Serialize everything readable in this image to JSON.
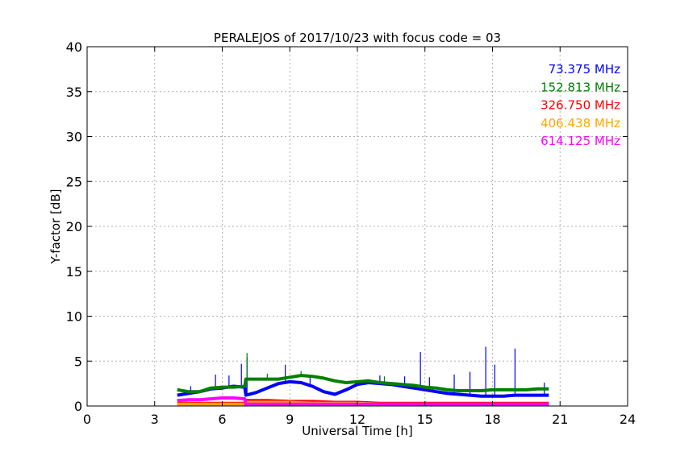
{
  "chart_data": {
    "type": "line",
    "title": "PERALEJOS of 2017/10/23 with focus code = 03",
    "xlabel": "Universal Time [h]",
    "ylabel": "Y-factor [dB]",
    "xlim": [
      0,
      24
    ],
    "ylim": [
      0,
      40
    ],
    "xticks": [
      0,
      3,
      6,
      9,
      12,
      15,
      18,
      21,
      24
    ],
    "yticks": [
      0,
      5,
      10,
      15,
      20,
      25,
      30,
      35,
      40
    ],
    "grid": true,
    "legend_position": "top-right",
    "series": [
      {
        "name": "73.375 MHz",
        "color": "#0000ff",
        "x": [
          4.0,
          4.5,
          5.0,
          5.5,
          6.0,
          6.5,
          7.0,
          7.05,
          7.5,
          8.0,
          8.5,
          9.0,
          9.5,
          10.0,
          10.5,
          11.0,
          11.5,
          12.0,
          12.5,
          13.0,
          13.5,
          14.0,
          14.5,
          15.0,
          15.5,
          16.0,
          16.5,
          17.0,
          17.5,
          18.0,
          18.5,
          19.0,
          19.5,
          20.0,
          20.5
        ],
        "y": [
          1.2,
          1.4,
          1.6,
          1.9,
          2.0,
          2.2,
          2.1,
          1.2,
          1.5,
          2.0,
          2.5,
          2.7,
          2.6,
          2.2,
          1.6,
          1.3,
          1.8,
          2.4,
          2.6,
          2.5,
          2.4,
          2.2,
          2.0,
          1.8,
          1.6,
          1.4,
          1.3,
          1.2,
          1.1,
          1.1,
          1.1,
          1.2,
          1.2,
          1.2,
          1.2
        ],
        "spikes": [
          [
            4.6,
            2.2
          ],
          [
            5.7,
            3.5
          ],
          [
            6.3,
            3.4
          ],
          [
            6.85,
            4.7
          ],
          [
            7.1,
            5.4
          ],
          [
            8.8,
            4.6
          ],
          [
            9.9,
            3.4
          ],
          [
            13.0,
            3.4
          ],
          [
            14.1,
            3.3
          ],
          [
            14.8,
            6.0
          ],
          [
            15.2,
            3.2
          ],
          [
            16.3,
            3.5
          ],
          [
            17.0,
            3.8
          ],
          [
            17.7,
            6.6
          ],
          [
            18.1,
            4.6
          ],
          [
            19.0,
            6.4
          ],
          [
            20.3,
            2.6
          ]
        ]
      },
      {
        "name": "152.813 MHz",
        "color": "#008000",
        "x": [
          4.0,
          4.5,
          5.0,
          5.5,
          6.0,
          6.5,
          7.0,
          7.05,
          7.5,
          8.0,
          8.5,
          9.0,
          9.5,
          10.0,
          10.5,
          11.0,
          11.5,
          12.0,
          12.5,
          13.0,
          13.5,
          14.0,
          14.5,
          15.0,
          15.5,
          16.0,
          16.5,
          17.0,
          17.5,
          18.0,
          18.5,
          19.0,
          19.5,
          20.0,
          20.5
        ],
        "y": [
          1.8,
          1.6,
          1.6,
          2.0,
          2.1,
          2.1,
          2.2,
          3.0,
          3.0,
          3.0,
          3.0,
          3.2,
          3.4,
          3.3,
          3.1,
          2.8,
          2.6,
          2.7,
          2.8,
          2.6,
          2.5,
          2.4,
          2.3,
          2.1,
          2.0,
          1.8,
          1.7,
          1.7,
          1.7,
          1.8,
          1.8,
          1.8,
          1.8,
          1.9,
          1.9
        ],
        "spikes": [
          [
            7.1,
            5.9
          ],
          [
            8.0,
            3.6
          ],
          [
            9.5,
            3.9
          ],
          [
            13.2,
            3.3
          ]
        ]
      },
      {
        "name": "326.750 MHz",
        "color": "#ff0000",
        "x": [
          4.0,
          5.0,
          6.0,
          7.0,
          7.05,
          8.0,
          9.0,
          10.0,
          11.0,
          12.0,
          13.0,
          14.0,
          15.0,
          16.0,
          17.0,
          18.0,
          19.0,
          20.0,
          20.5
        ],
        "y": [
          0.3,
          0.3,
          0.3,
          0.3,
          0.6,
          0.6,
          0.5,
          0.5,
          0.4,
          0.4,
          0.3,
          0.3,
          0.3,
          0.3,
          0.3,
          0.3,
          0.3,
          0.3,
          0.3
        ],
        "spikes": []
      },
      {
        "name": "406.438 MHz",
        "color": "#ffa500",
        "x": [
          4.0,
          5.0,
          6.0,
          7.0,
          7.05,
          8.0,
          9.0,
          10.0,
          11.0,
          12.0,
          13.0,
          14.0,
          15.0,
          16.0,
          17.0,
          18.0,
          19.0,
          20.0,
          20.5
        ],
        "y": [
          0.2,
          0.2,
          0.2,
          0.2,
          0.4,
          0.4,
          0.4,
          0.3,
          0.3,
          0.3,
          0.2,
          0.2,
          0.2,
          0.2,
          0.2,
          0.2,
          0.2,
          0.2,
          0.2
        ],
        "spikes": []
      },
      {
        "name": "614.125 MHz",
        "color": "#ff00ff",
        "x": [
          4.0,
          4.5,
          5.0,
          5.5,
          6.0,
          6.5,
          7.0,
          7.05,
          8.0,
          9.0,
          10.0,
          11.0,
          12.0,
          13.0,
          14.0,
          15.0,
          16.0,
          17.0,
          18.0,
          19.0,
          20.0,
          20.5
        ],
        "y": [
          0.6,
          0.7,
          0.7,
          0.8,
          0.9,
          0.9,
          0.8,
          0.2,
          0.2,
          0.2,
          0.2,
          0.2,
          0.2,
          0.2,
          0.2,
          0.2,
          0.2,
          0.2,
          0.2,
          0.2,
          0.2,
          0.2
        ],
        "spikes": []
      }
    ]
  }
}
